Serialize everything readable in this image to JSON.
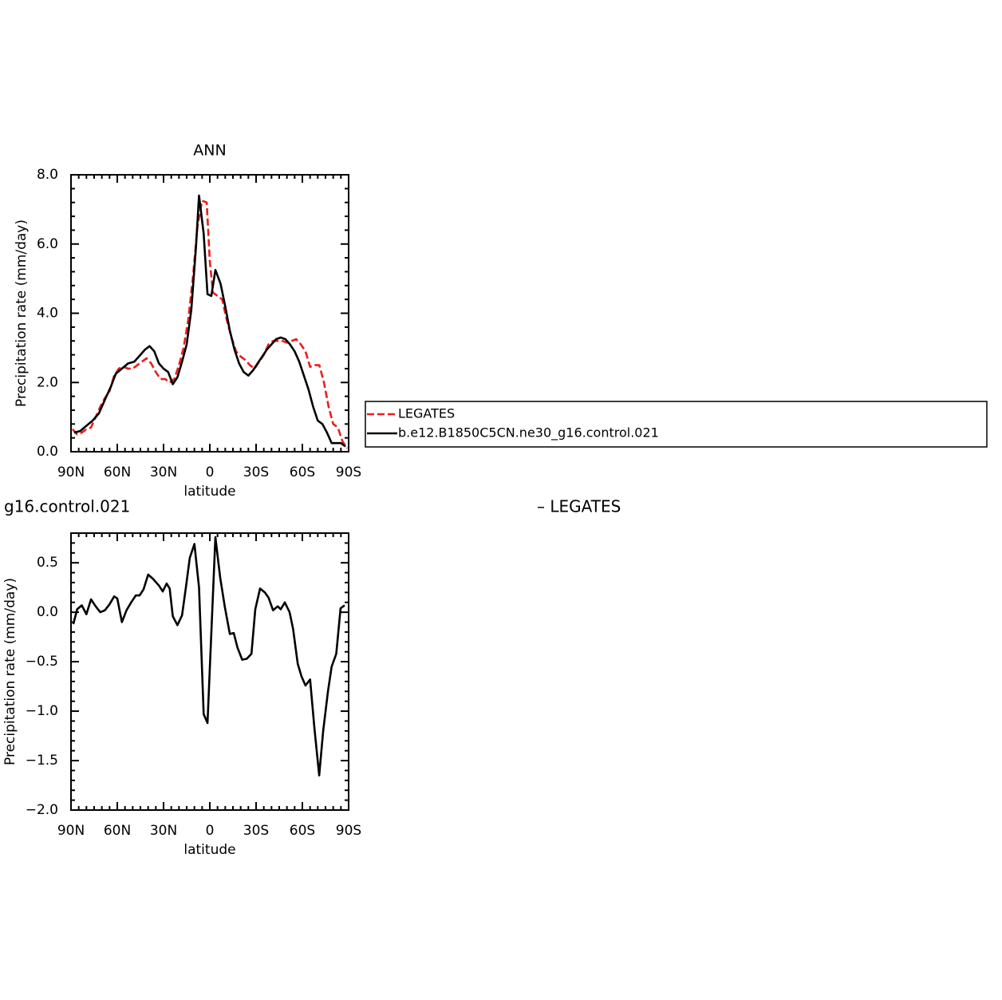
{
  "chart_data": [
    {
      "type": "line",
      "title": "ANN",
      "xlabel": "latitude",
      "ylabel": "Precipitation rate (mm/day)",
      "xlim": [
        90,
        -90
      ],
      "xticks": [
        {
          "value": 90,
          "label": "90N"
        },
        {
          "value": 60,
          "label": "60N"
        },
        {
          "value": 30,
          "label": "30N"
        },
        0,
        {
          "value": -30,
          "label": "30S"
        },
        {
          "value": -60,
          "label": "60S"
        },
        {
          "value": -90,
          "label": "90S"
        }
      ],
      "xminorticks": [
        85,
        80,
        75,
        70,
        65,
        55,
        50,
        45,
        40,
        35,
        25,
        20,
        15,
        10,
        5,
        -5,
        -10,
        -15,
        -20,
        -25,
        -35,
        -40,
        -45,
        -50,
        -55,
        -65,
        -70,
        -75,
        -80,
        -85
      ],
      "ylim": [
        0,
        8
      ],
      "yticks": [
        {
          "value": 0,
          "label": "0.0"
        },
        {
          "value": 2,
          "label": "2.0"
        },
        {
          "value": 4,
          "label": "4.0"
        },
        {
          "value": 6,
          "label": "6.0"
        },
        {
          "value": 8,
          "label": "8.0"
        }
      ],
      "yminorticks": [
        0.4,
        0.8,
        1.2,
        1.6,
        2.4,
        2.8,
        3.2,
        3.6,
        4.4,
        4.8,
        5.2,
        5.6,
        6.4,
        6.8,
        7.2,
        7.6
      ],
      "legend": "right",
      "series": [
        {
          "name": "LEGATES",
          "color": "#ee1c1c",
          "linestyle": "dashed",
          "x": [
            89,
            86,
            83,
            80,
            77,
            74,
            71,
            68,
            65,
            62,
            59,
            56,
            53,
            50,
            47,
            44,
            41,
            38,
            35,
            32,
            29,
            26,
            23,
            20,
            17,
            14,
            11,
            8,
            5,
            2,
            0,
            -2,
            -5,
            -8,
            -11,
            -14,
            -17,
            -20,
            -23,
            -26,
            -29,
            -32,
            -35,
            -38,
            -41,
            -44,
            -47,
            -50,
            -53,
            -56,
            -59,
            -62,
            -65,
            -68,
            -71,
            -74,
            -77,
            -80,
            -83,
            -86,
            -89
          ],
          "values": [
            0.65,
            0.5,
            0.55,
            0.65,
            0.7,
            1.0,
            1.3,
            1.55,
            1.75,
            2.2,
            2.4,
            2.45,
            2.4,
            2.4,
            2.5,
            2.6,
            2.7,
            2.55,
            2.3,
            2.1,
            2.1,
            2.0,
            2.1,
            2.5,
            3.0,
            3.8,
            5.0,
            6.5,
            7.25,
            7.2,
            5.5,
            4.6,
            4.5,
            4.4,
            3.8,
            3.3,
            2.9,
            2.75,
            2.65,
            2.5,
            2.4,
            2.6,
            2.8,
            3.1,
            3.2,
            3.2,
            3.2,
            3.15,
            3.2,
            3.25,
            3.1,
            2.9,
            2.45,
            2.5,
            2.5,
            2.0,
            1.3,
            0.8,
            0.7,
            0.3,
            0.1
          ]
        },
        {
          "name": "b.e12.B1850C5CN.ne30_g16.control.021",
          "color": "#000000",
          "linestyle": "solid",
          "x": [
            88,
            84,
            80,
            76,
            72,
            68,
            64,
            61,
            57,
            53,
            49,
            45,
            42,
            39,
            36,
            33,
            30,
            27,
            24,
            21,
            18,
            15,
            12,
            9,
            7,
            4,
            1.5,
            -1,
            -3.6,
            -7,
            -10,
            -13,
            -16,
            -19,
            -22,
            -25,
            -28,
            -31,
            -34,
            -37,
            -40,
            -43,
            -46,
            -49,
            -52,
            -55,
            -58,
            -61,
            -64,
            -67,
            -70,
            -73,
            -76,
            -79,
            -82,
            -85,
            -88
          ],
          "values": [
            0.55,
            0.6,
            0.75,
            0.9,
            1.1,
            1.5,
            1.9,
            2.25,
            2.4,
            2.55,
            2.6,
            2.8,
            2.95,
            3.05,
            2.9,
            2.55,
            2.4,
            2.3,
            1.95,
            2.15,
            2.6,
            3.1,
            4.1,
            5.9,
            7.4,
            6.3,
            4.55,
            4.5,
            5.25,
            4.85,
            4.2,
            3.5,
            2.95,
            2.55,
            2.3,
            2.2,
            2.35,
            2.55,
            2.75,
            2.95,
            3.1,
            3.25,
            3.3,
            3.25,
            3.1,
            2.9,
            2.6,
            2.2,
            1.8,
            1.3,
            0.9,
            0.8,
            0.55,
            0.25,
            0.25,
            0.25,
            0.15
          ]
        }
      ]
    },
    {
      "type": "line",
      "title_left": "g16.control.021",
      "title_right": "– LEGATES",
      "xlabel": "latitude",
      "ylabel": "Precipitation rate (mm/day)",
      "xlim": [
        90,
        -90
      ],
      "xticks": [
        {
          "value": 90,
          "label": "90N"
        },
        {
          "value": 60,
          "label": "60N"
        },
        {
          "value": 30,
          "label": "30N"
        },
        0,
        {
          "value": -30,
          "label": "30S"
        },
        {
          "value": -60,
          "label": "60S"
        },
        {
          "value": -90,
          "label": "90S"
        }
      ],
      "xminorticks": [
        85,
        80,
        75,
        70,
        65,
        55,
        50,
        45,
        40,
        35,
        25,
        20,
        15,
        10,
        5,
        -5,
        -10,
        -15,
        -20,
        -25,
        -35,
        -40,
        -45,
        -50,
        -55,
        -65,
        -70,
        -75,
        -80,
        -85
      ],
      "ylim": [
        -2,
        0.8
      ],
      "yticks": [
        0.5,
        {
          "value": 0,
          "label": "0.0"
        },
        {
          "value": -0.5,
          "label": "−0.5"
        },
        {
          "value": -1,
          "label": "−1.0"
        },
        {
          "value": -1.5,
          "label": "−1.5"
        },
        {
          "value": -2,
          "label": "−2.0"
        }
      ],
      "yminorticks": [
        0.7,
        0.6,
        0.4,
        0.3,
        0.2,
        0.1,
        -0.1,
        -0.2,
        -0.3,
        -0.4,
        -0.6,
        -0.7,
        -0.8,
        -0.9,
        -1.1,
        -1.2,
        -1.3,
        -1.4,
        -1.6,
        -1.7,
        -1.8,
        -1.9
      ],
      "color": "#000000",
      "x": [
        88.5,
        86,
        83,
        80,
        77,
        74,
        71,
        68,
        65,
        62,
        60,
        57,
        54,
        51,
        48,
        45.5,
        43,
        40,
        37,
        33,
        30.5,
        28,
        26,
        24,
        21,
        18,
        15.5,
        13,
        10,
        7,
        4,
        1.5,
        -3.6,
        -6.7,
        -9.8,
        -13,
        -15.5,
        -18,
        -21,
        -24,
        -27,
        -29.5,
        -32.6,
        -35.7,
        -38,
        -41,
        -44,
        -46,
        -48.6,
        -51.7,
        -54,
        -57,
        -59.5,
        -62,
        -65,
        -67.8,
        -70.9,
        -73.5,
        -76.6,
        -79,
        -82,
        -84.8,
        -87.4
      ],
      "values": [
        -0.12,
        0.03,
        0.07,
        -0.02,
        0.13,
        0.06,
        0.0,
        0.02,
        0.08,
        0.16,
        0.14,
        -0.1,
        0.02,
        0.1,
        0.17,
        0.17,
        0.23,
        0.38,
        0.34,
        0.27,
        0.21,
        0.29,
        0.24,
        -0.04,
        -0.13,
        -0.03,
        0.25,
        0.55,
        0.69,
        0.25,
        -1.03,
        -1.12,
        0.76,
        0.35,
        0.05,
        -0.22,
        -0.21,
        -0.36,
        -0.48,
        -0.47,
        -0.42,
        0.03,
        0.24,
        0.2,
        0.15,
        0.02,
        0.06,
        0.03,
        0.1,
        0.0,
        -0.17,
        -0.52,
        -0.65,
        -0.74,
        -0.68,
        -1.17,
        -1.65,
        -1.2,
        -0.8,
        -0.55,
        -0.42,
        0.04,
        0.07
      ]
    }
  ]
}
